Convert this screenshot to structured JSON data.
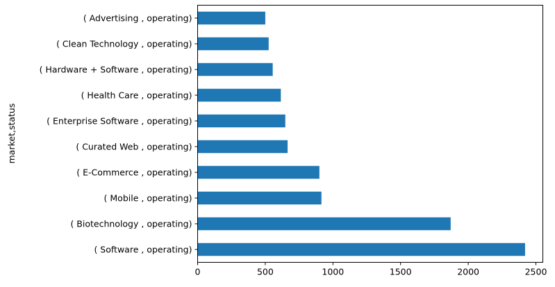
{
  "chart_data": {
    "type": "bar",
    "orientation": "horizontal",
    "title": "",
    "xlabel": "",
    "ylabel": "market,status",
    "categories": [
      "( Software , operating)",
      "( Biotechnology , operating)",
      "( Mobile , operating)",
      "( E-Commerce , operating)",
      "( Curated Web , operating)",
      "( Enterprise Software , operating)",
      "( Health Care , operating)",
      "( Hardware + Software , operating)",
      "( Clean Technology , operating)",
      "( Advertising , operating)"
    ],
    "values": [
      2420,
      1870,
      915,
      900,
      665,
      648,
      615,
      555,
      525,
      500
    ],
    "xlim": [
      0,
      2500
    ],
    "xticks": [
      0,
      500,
      1000,
      1500,
      2000,
      2500
    ],
    "grid": false,
    "legend": false,
    "bar_color": "#1f77b4"
  }
}
